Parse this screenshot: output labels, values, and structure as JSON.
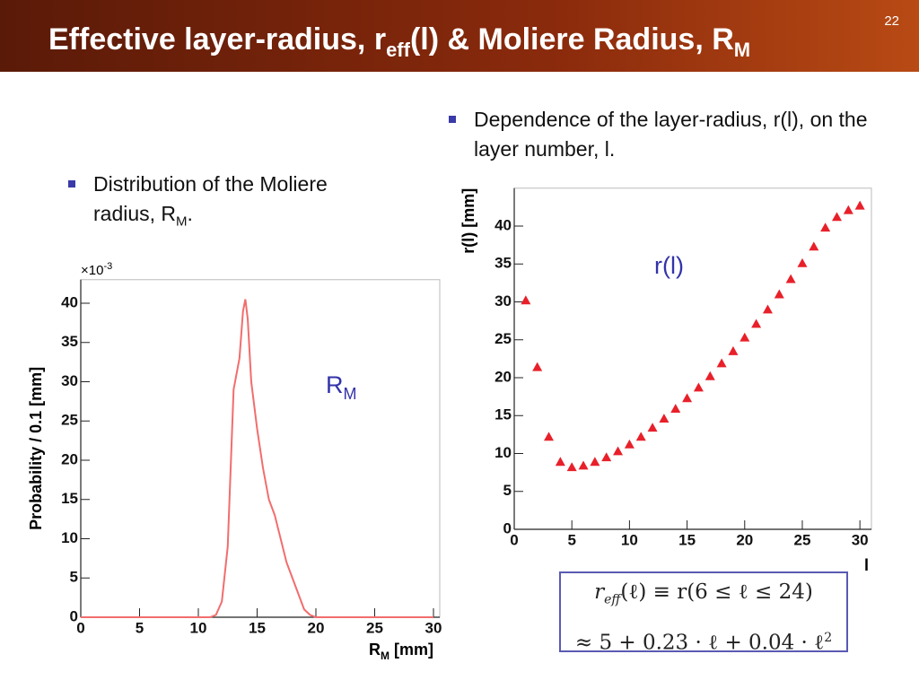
{
  "header": {
    "title": "Effective layer-radius, r",
    "title_sub": "eff",
    "title_mid": "(l) & Moliere Radius, R",
    "title_sub2": "M",
    "slide_number": "22"
  },
  "bullets": [
    {
      "text": "Dependence of the layer-radius, r(l), on the layer number, l."
    },
    {
      "text": "Distribution of the Moliere radius, R",
      "sub": "M",
      "tail": "."
    }
  ],
  "formula": {
    "line1": "r",
    "line1_sub": "eff",
    "line1_rest": "(ℓ) ≡ r(6 ≤ ℓ ≤ 24)",
    "line2": "≈ 5 + 0.23 · ℓ + 0.04 · ℓ",
    "line2_sup": "2"
  },
  "chart_data": [
    {
      "type": "line",
      "y_label": "Probability / 0.1 [mm]",
      "x_label": "R",
      "x_label_sub": "M",
      "x_label_unit": "[mm]",
      "y_multiplier": "×10",
      "y_multiplier_exp": "-3",
      "annotation": "R",
      "annotation_sub": "M",
      "color": "#f26d6d",
      "x": [
        0,
        11,
        11.5,
        12,
        12.5,
        13,
        13.5,
        13.8,
        14,
        14.2,
        14.5,
        15,
        15.5,
        16,
        16.5,
        17,
        17.5,
        18,
        18.5,
        19,
        19.5,
        20,
        30
      ],
      "values": [
        0,
        0,
        0.3,
        2,
        9,
        29,
        33,
        39,
        40.5,
        38,
        30,
        24,
        19,
        15,
        13,
        10,
        7,
        5,
        3,
        1,
        0.3,
        0,
        0
      ],
      "xlim": [
        0,
        30
      ],
      "ylim": [
        0,
        43
      ],
      "xticks": [
        0,
        5,
        10,
        15,
        20,
        25,
        30
      ],
      "yticks": [
        0,
        5,
        10,
        15,
        20,
        25,
        30,
        35,
        40
      ]
    },
    {
      "type": "scatter",
      "y_label": "r(l) [mm]",
      "x_label": "l",
      "annotation": "r(l)",
      "color": "#e8202a",
      "marker": "triangle",
      "x": [
        1,
        2,
        3,
        4,
        5,
        6,
        7,
        8,
        9,
        10,
        11,
        12,
        13,
        14,
        15,
        16,
        17,
        18,
        19,
        20,
        21,
        22,
        23,
        24,
        25,
        26,
        27,
        28,
        29,
        30
      ],
      "values": [
        30.2,
        21.4,
        12.2,
        8.9,
        8.2,
        8.4,
        8.9,
        9.5,
        10.3,
        11.2,
        12.2,
        13.4,
        14.6,
        15.9,
        17.3,
        18.7,
        20.2,
        21.9,
        23.5,
        25.3,
        27.1,
        29.0,
        31.0,
        33.0,
        35.1,
        37.3,
        39.8,
        41.2,
        42.1,
        42.7
      ],
      "xlim": [
        0,
        31
      ],
      "ylim": [
        0,
        45
      ],
      "xticks": [
        0,
        5,
        10,
        15,
        20,
        25,
        30
      ],
      "yticks": [
        0,
        5,
        10,
        15,
        20,
        25,
        30,
        35,
        40
      ]
    }
  ]
}
